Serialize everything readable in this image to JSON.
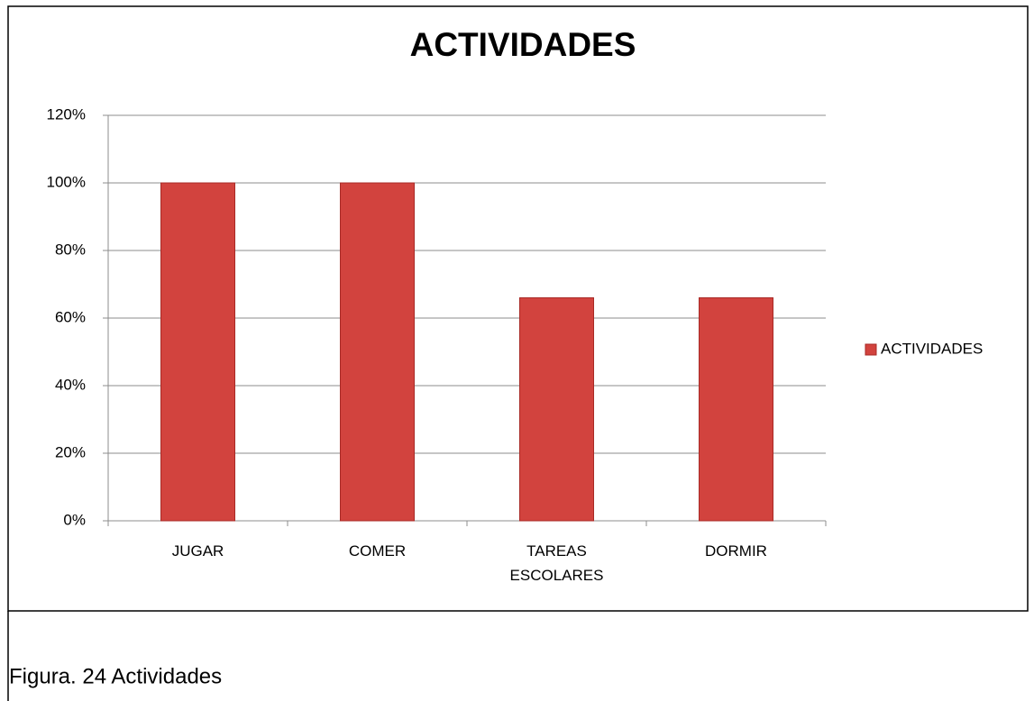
{
  "chart_data": {
    "type": "bar",
    "title": "ACTIVIDADES",
    "categories": [
      "JUGAR",
      "COMER",
      "TAREAS ESCOLARES",
      "DORMIR"
    ],
    "series": [
      {
        "name": "ACTIVIDADES",
        "color": "#d2433e",
        "values": [
          100,
          100,
          66,
          66
        ]
      }
    ],
    "ylim": [
      0,
      120
    ],
    "yticks": [
      {
        "value": 0,
        "label": "0%"
      },
      {
        "value": 20,
        "label": "20%"
      },
      {
        "value": 40,
        "label": "40%"
      },
      {
        "value": 60,
        "label": "60%"
      },
      {
        "value": 80,
        "label": "80%"
      },
      {
        "value": 100,
        "label": "100%"
      },
      {
        "value": 120,
        "label": "120%"
      }
    ],
    "grid": true,
    "legend": "right",
    "caption": "Figura. 24  Actividades"
  }
}
